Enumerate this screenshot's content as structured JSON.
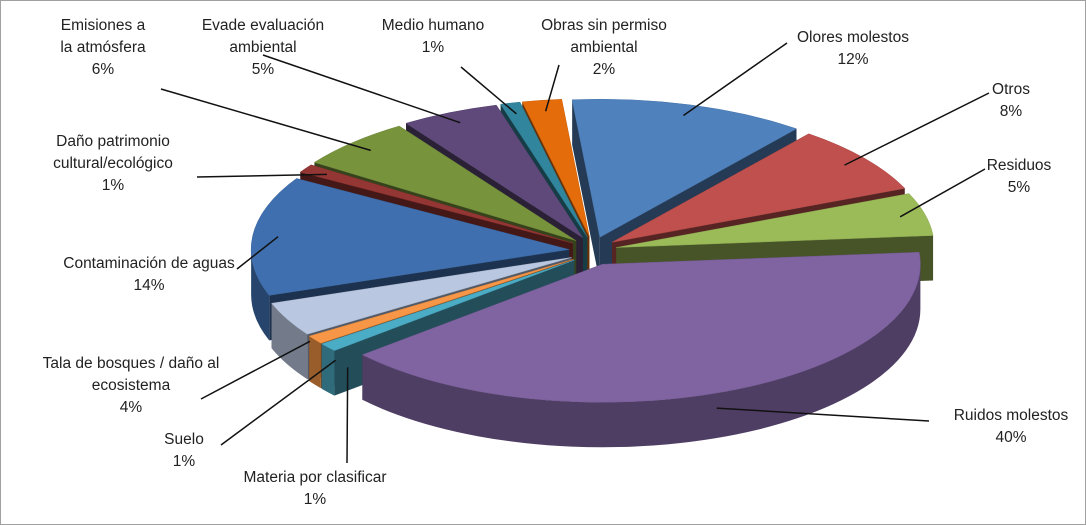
{
  "chart_data": {
    "type": "pie3d",
    "categories": [
      "Olores molestos",
      "Otros",
      "Residuos",
      "Ruidos molestos",
      "Materia por clasificar",
      "Suelo",
      "Tala de bosques / daño al ecosistema",
      "Contaminación de aguas",
      "Daño patrimonio cultural/ecológico",
      "Emisiones a la atmósfera",
      "Evade evaluación ambiental",
      "Medio humano",
      "Obras sin permiso ambiental"
    ],
    "values": [
      12,
      8,
      5,
      40,
      1,
      1,
      4,
      14,
      1,
      6,
      5,
      1,
      2
    ],
    "value_labels": [
      "12%",
      "8%",
      "5%",
      "40%",
      "1%",
      "1%",
      "4%",
      "14%",
      "1%",
      "6%",
      "5%",
      "1%",
      "2%"
    ],
    "colors": [
      "#4f81bd",
      "#c0504d",
      "#9bbb59",
      "#8064a2",
      "#4bacc6",
      "#f79646",
      "#b9c7e0",
      "#3f6fae",
      "#943634",
      "#77933c",
      "#5f497a",
      "#31859c",
      "#e46c0a"
    ]
  }
}
